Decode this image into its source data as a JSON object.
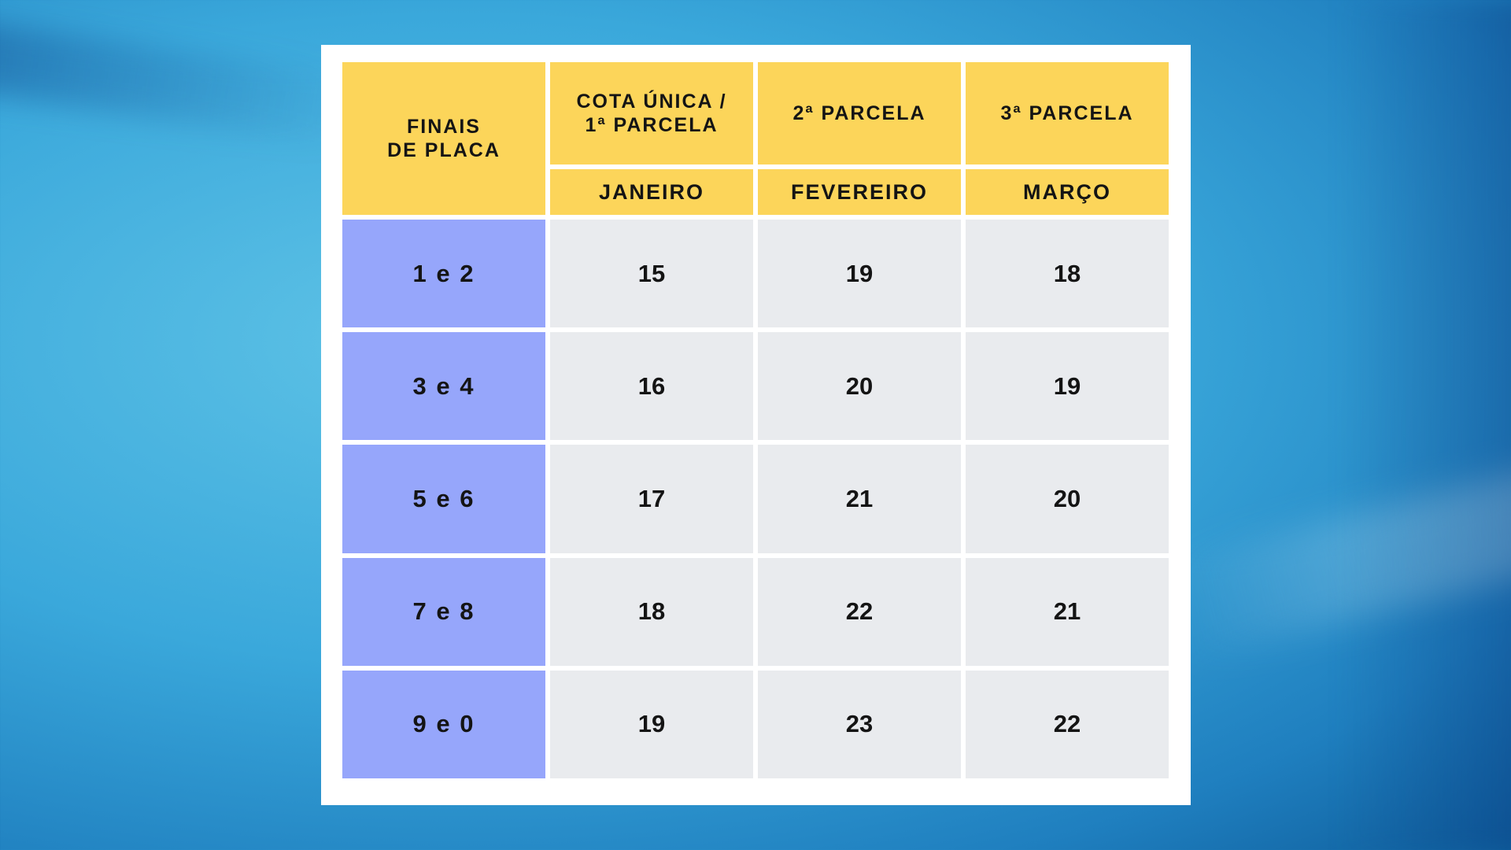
{
  "table": {
    "corner_header_line1": "FINAIS",
    "corner_header_line2": "DE PLACA",
    "installments": [
      {
        "line1": "COTA ÚNICA /",
        "line2": "1ª PARCELA",
        "month": "JANEIRO"
      },
      {
        "line1": "2ª PARCELA",
        "line2": "",
        "month": "FEVEREIRO"
      },
      {
        "line1": "3ª PARCELA",
        "line2": "",
        "month": "MARÇO"
      }
    ],
    "rows": [
      {
        "label": "1 e 2",
        "values": [
          "15",
          "19",
          "18"
        ]
      },
      {
        "label": "3 e 4",
        "values": [
          "16",
          "20",
          "19"
        ]
      },
      {
        "label": "5 e 6",
        "values": [
          "17",
          "21",
          "20"
        ]
      },
      {
        "label": "7 e 8",
        "values": [
          "18",
          "22",
          "21"
        ]
      },
      {
        "label": "9 e 0",
        "values": [
          "19",
          "23",
          "22"
        ]
      }
    ],
    "colors": {
      "header": "#fcd55a",
      "row_label": "#96a6fb",
      "cell": "#e9ebee"
    }
  }
}
